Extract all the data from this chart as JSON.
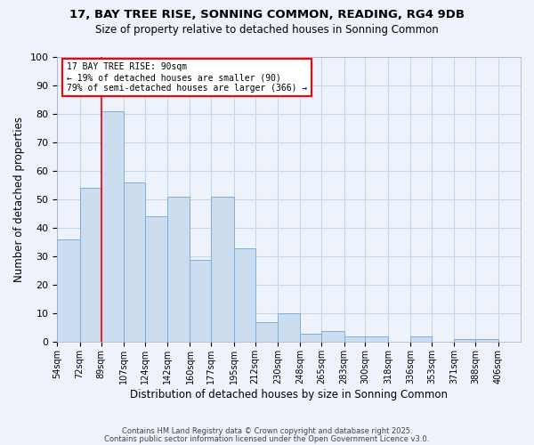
{
  "title": "17, BAY TREE RISE, SONNING COMMON, READING, RG4 9DB",
  "subtitle": "Size of property relative to detached houses in Sonning Common",
  "xlabel": "Distribution of detached houses by size in Sonning Common",
  "ylabel": "Number of detached properties",
  "bar_left_edges": [
    54,
    72,
    89,
    107,
    124,
    142,
    160,
    177,
    195,
    212,
    230,
    248,
    265,
    283,
    300,
    318,
    336,
    353,
    371,
    388
  ],
  "bar_widths": [
    18,
    17,
    18,
    17,
    18,
    18,
    17,
    18,
    17,
    18,
    18,
    17,
    18,
    17,
    18,
    18,
    17,
    18,
    17,
    18
  ],
  "bar_heights": [
    36,
    54,
    81,
    56,
    44,
    51,
    29,
    51,
    33,
    7,
    10,
    3,
    4,
    2,
    2,
    0,
    2,
    0,
    1,
    1
  ],
  "bar_color": "#ccddf0",
  "bar_edge_color": "#7aafdb",
  "x_tick_labels": [
    "54sqm",
    "72sqm",
    "89sqm",
    "107sqm",
    "124sqm",
    "142sqm",
    "160sqm",
    "177sqm",
    "195sqm",
    "212sqm",
    "230sqm",
    "248sqm",
    "265sqm",
    "283sqm",
    "300sqm",
    "318sqm",
    "336sqm",
    "353sqm",
    "371sqm",
    "388sqm",
    "406sqm"
  ],
  "x_tick_positions": [
    54,
    72,
    89,
    107,
    124,
    142,
    160,
    177,
    195,
    212,
    230,
    248,
    265,
    283,
    300,
    318,
    336,
    353,
    371,
    388,
    406
  ],
  "xlim_left": 54,
  "xlim_right": 424,
  "ylim": [
    0,
    100
  ],
  "yticks": [
    0,
    10,
    20,
    30,
    40,
    50,
    60,
    70,
    80,
    90,
    100
  ],
  "property_line_x": 89,
  "annotation_title": "17 BAY TREE RISE: 90sqm",
  "annotation_line1": "← 19% of detached houses are smaller (90)",
  "annotation_line2": "79% of semi-detached houses are larger (366) →",
  "annotation_box_color": "white",
  "annotation_box_edge_color": "red",
  "vertical_line_color": "red",
  "bg_color": "#eef2fa",
  "grid_color": "#c5d5ee",
  "footer_line1": "Contains HM Land Registry data © Crown copyright and database right 2025.",
  "footer_line2": "Contains public sector information licensed under the Open Government Licence v3.0."
}
